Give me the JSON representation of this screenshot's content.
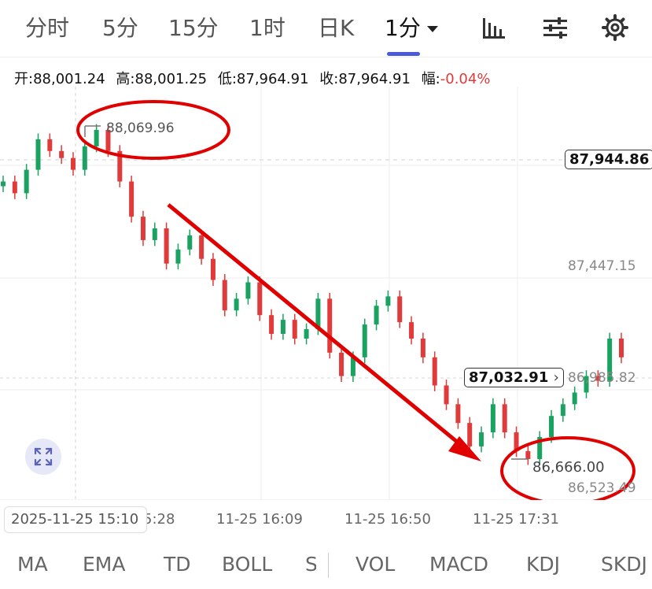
{
  "tabs": [
    {
      "label": "分时",
      "active": false
    },
    {
      "label": "5分",
      "active": false
    },
    {
      "label": "15分",
      "active": false
    },
    {
      "label": "1时",
      "active": false
    },
    {
      "label": "日K",
      "active": false
    },
    {
      "label": "1分",
      "active": true
    }
  ],
  "toolbar_icons": [
    "bar-chart-icon",
    "sliders-icon",
    "gear-icon"
  ],
  "ohlc": {
    "open_label": "开:",
    "open": "88,001.24",
    "high_label": "高:",
    "high": "88,001.25",
    "low_label": "低:",
    "low": "87,964.91",
    "close_label": "收:",
    "close": "87,964.91",
    "change_label": "幅:",
    "change": "-0.04%"
  },
  "chart": {
    "max_annotation": "88,069.96",
    "min_annotation": "86,666.00",
    "current_price": "87,944.86",
    "cursor_price": "87,032.91",
    "axis_labels": [
      "87,447.15",
      "86,985.82",
      "86,523.49"
    ],
    "colors": {
      "up": "#1aa260",
      "down": "#e03a3a",
      "annotation": "#e00000"
    }
  },
  "chart_data": {
    "type": "candlestick",
    "series": [
      {
        "values": [
          87850,
          87800,
          87900,
          88030,
          87980,
          87950,
          87900,
          88000,
          88069.96,
          87980,
          87850,
          87700,
          87600,
          87650,
          87500,
          87560,
          87620,
          87520,
          87430,
          87300,
          87350,
          87420,
          87280,
          87200,
          87260,
          87180,
          87220,
          87350,
          87120,
          87020,
          87100,
          87240,
          87320,
          87360,
          87250,
          87180,
          87100,
          86980,
          86900,
          86820,
          86720,
          86780,
          86900,
          86780,
          86700,
          86666,
          86760,
          86850,
          86900,
          86950,
          87020,
          87000,
          87180,
          87100
        ]
      }
    ],
    "x_ticks": [
      "2025-11-25 15:10",
      "5:28",
      "11-25 16:09",
      "11-25 16:50",
      "11-25 17:31"
    ]
  },
  "indicators": [
    "MA",
    "EMA",
    "TD",
    "BOLL",
    "S",
    "VOL",
    "MACD",
    "KDJ",
    "SKDJ"
  ]
}
